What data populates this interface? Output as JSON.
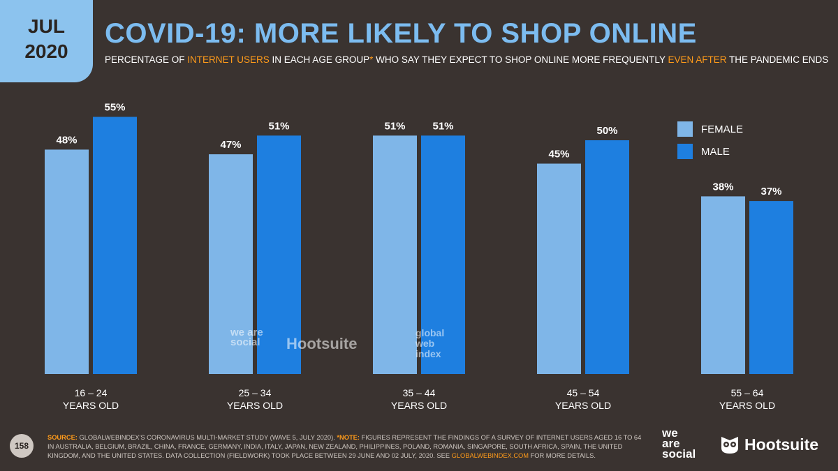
{
  "badge": {
    "month": "JUL",
    "year": "2020"
  },
  "title": "COVID-19: MORE LIKELY TO SHOP ONLINE",
  "subtitle": {
    "p1": "PERCENTAGE OF ",
    "h1": "INTERNET USERS",
    "p2": " IN EACH AGE GROUP",
    "h2": "*",
    "p3": " WHO SAY THEY EXPECT TO SHOP ONLINE MORE FREQUENTLY ",
    "h3": "EVEN AFTER",
    "p4": " THE PANDEMIC ENDS"
  },
  "chart_data": {
    "type": "bar",
    "categories": [
      [
        "16 – 24",
        "YEARS OLD"
      ],
      [
        "25 – 34",
        "YEARS OLD"
      ],
      [
        "35 – 44",
        "YEARS OLD"
      ],
      [
        "45 – 54",
        "YEARS OLD"
      ],
      [
        "55 – 64",
        "YEARS OLD"
      ]
    ],
    "series": [
      {
        "name": "FEMALE",
        "values": [
          48,
          47,
          51,
          45,
          38
        ],
        "color": "#7fb6e8"
      },
      {
        "name": "MALE",
        "values": [
          55,
          51,
          51,
          50,
          37
        ],
        "color": "#1e7fe0"
      }
    ],
    "value_suffix": "%",
    "ylim": [
      0,
      100
    ],
    "legend_position": "top-right",
    "grid": false
  },
  "watermarks": {
    "we_are_social": "we are social",
    "hootsuite": "Hootsuite",
    "gwi": "global web index"
  },
  "footer": {
    "page_number": "158",
    "source_label": "SOURCE:",
    "source_text": " GLOBALWEBINDEX'S CORONAVIRUS MULTI-MARKET STUDY (WAVE 5, JULY 2020). ",
    "note_label": "*NOTE:",
    "note_text": " FIGURES REPRESENT THE FINDINGS OF A SURVEY OF INTERNET USERS AGED 16 TO 64 IN AUSTRALIA, BELGIUM, BRAZIL, CHINA, FRANCE, GERMANY, INDIA, ITALY, JAPAN, NEW ZEALAND, PHILIPPINES, POLAND, ROMANIA, SINGAPORE, SOUTH AFRICA, SPAIN, THE UNITED KINGDOM, AND THE UNITED STATES. DATA COLLECTION (FIELDWORK) TOOK PLACE BETWEEN 29 JUNE AND 02 JULY, 2020. SEE ",
    "link_text": "GLOBALWEBINDEX.COM",
    "tail_text": " FOR MORE DETAILS."
  },
  "logos": {
    "we": "we",
    "are": "are",
    "social": "social",
    "hootsuite": "Hootsuite"
  }
}
